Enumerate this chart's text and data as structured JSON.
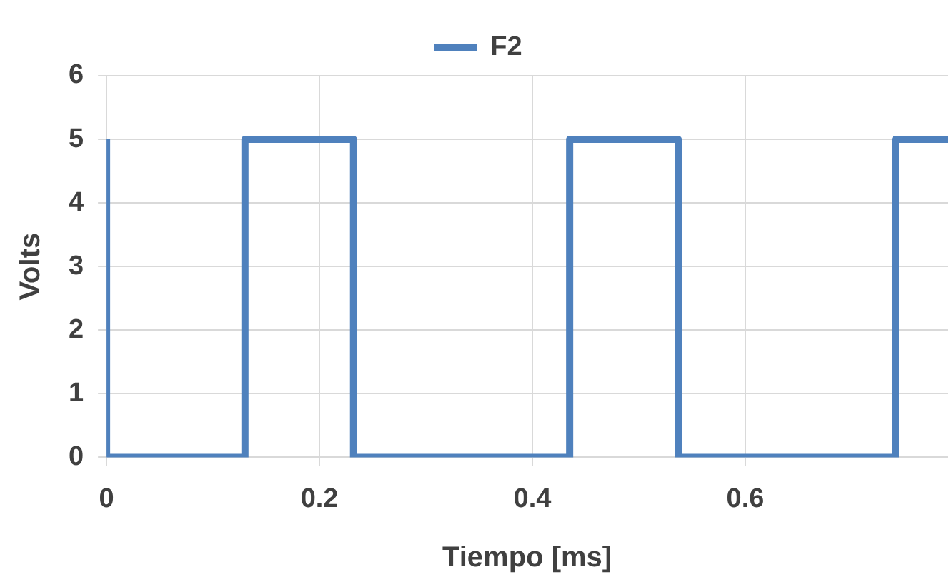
{
  "chart_data": {
    "type": "step",
    "xlabel": "Tiempo [ms]",
    "ylabel": "Volts",
    "series": [
      {
        "name": "F2",
        "color": "#4f81bd",
        "x": [
          0,
          0,
          0.13,
          0.232,
          0.435,
          0.537,
          0.741,
          0.79
        ],
        "values": [
          5,
          0,
          5,
          0,
          5,
          0,
          5,
          5
        ]
      }
    ],
    "xlim": [
      0,
      0.79
    ],
    "xticks": [
      0,
      0.2,
      0.4,
      0.6
    ],
    "ylim": [
      0,
      6
    ],
    "yticks": [
      0,
      1,
      2,
      3,
      4,
      5,
      6
    ],
    "grid": true,
    "legend": "top",
    "marker": "none",
    "line_style": "solid"
  }
}
